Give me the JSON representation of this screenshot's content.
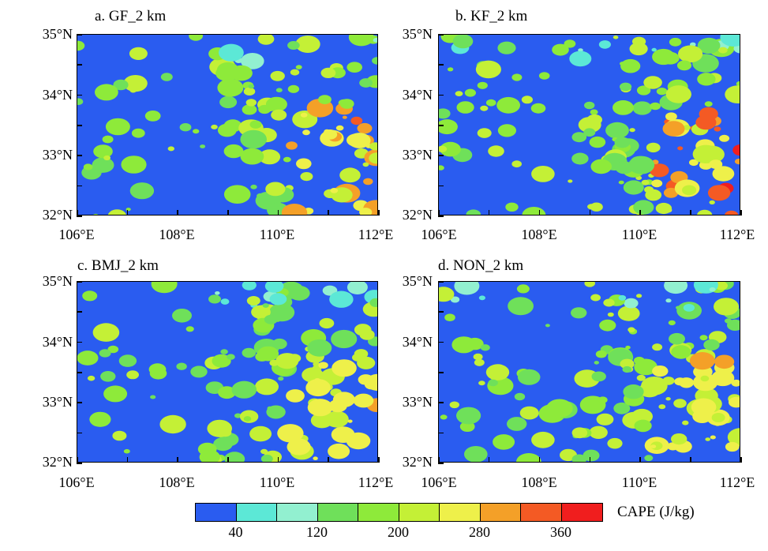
{
  "panels": [
    {
      "id": "a",
      "title": "a. GF_2 km",
      "hot": 0.9
    },
    {
      "id": "b",
      "title": "b. KF_2 km",
      "hot": 1.2
    },
    {
      "id": "c",
      "title": "c. BMJ_2 km",
      "hot": 0.55
    },
    {
      "id": "d",
      "title": "d. NON_2 km",
      "hot": 0.6
    }
  ],
  "axes": {
    "lat_ticks": [
      "35°N",
      "34°N",
      "33°N",
      "32°N"
    ],
    "lon_ticks": [
      "106°E",
      "108°E",
      "110°E",
      "112°E"
    ]
  },
  "colorbar": {
    "title": "CAPE (J/kg)",
    "colors": [
      "#2a5cf0",
      "#5ce8d6",
      "#92f0d0",
      "#6fe05a",
      "#8eea3a",
      "#c4f036",
      "#eef04a",
      "#f4a028",
      "#f45a24",
      "#f01e1e"
    ],
    "labels": [
      "40",
      "120",
      "200",
      "280",
      "360"
    ],
    "label_positions": [
      1,
      3,
      5,
      7,
      9
    ]
  }
}
